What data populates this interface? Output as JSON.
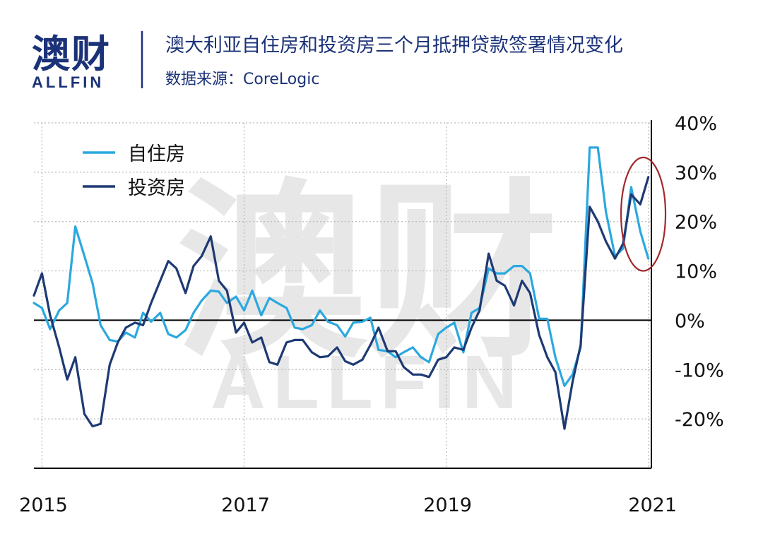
{
  "brand": {
    "logo_cn": "澳财",
    "logo_en": "ALLFIN",
    "color": "#1b3278",
    "accent": "#d21b2a"
  },
  "header": {
    "title": "澳大利亚自住房和投资房三个月抵押贷款签署情况变化",
    "source": "数据来源：CoreLogic"
  },
  "watermark": {
    "cn": "澳财",
    "en": "ALLFIN"
  },
  "chart_data": {
    "type": "line",
    "x_ticks": [
      {
        "label": "2015",
        "year": 2015
      },
      {
        "label": "2017",
        "year": 2017
      },
      {
        "label": "2019",
        "year": 2019
      },
      {
        "label": "2021",
        "year": 2021
      }
    ],
    "y_ticks": [
      {
        "label": "40%",
        "value": 40
      },
      {
        "label": "30%",
        "value": 30
      },
      {
        "label": "20%",
        "value": 20
      },
      {
        "label": "10%",
        "value": 10
      },
      {
        "label": "0%",
        "value": 0
      },
      {
        "label": "-10%",
        "value": -10
      },
      {
        "label": "-20%",
        "value": -20
      }
    ],
    "ylim": [
      -30,
      40
    ],
    "xlim": [
      2014.92,
      2021.03
    ],
    "grid": "dotted",
    "legend": "top-left",
    "highlight_ellipse": {
      "x_center": 2020.95,
      "y_center": 21.5,
      "x_radius": 0.22,
      "y_radius": 11.5,
      "color": "#a3292c"
    },
    "series": [
      {
        "name": "自住房",
        "color": "#2ba8df",
        "points": [
          [
            2014.92,
            3.5
          ],
          [
            2015.0,
            2.5
          ],
          [
            2015.08,
            -1.8
          ],
          [
            2015.17,
            2.0
          ],
          [
            2015.25,
            3.5
          ],
          [
            2015.33,
            19.0
          ],
          [
            2015.42,
            13.0
          ],
          [
            2015.5,
            7.5
          ],
          [
            2015.58,
            -1.0
          ],
          [
            2015.67,
            -4.0
          ],
          [
            2015.75,
            -4.3
          ],
          [
            2015.83,
            -2.5
          ],
          [
            2015.92,
            -3.5
          ],
          [
            2016.0,
            1.5
          ],
          [
            2016.08,
            -0.3
          ],
          [
            2016.17,
            1.5
          ],
          [
            2016.25,
            -2.8
          ],
          [
            2016.33,
            -3.5
          ],
          [
            2016.42,
            -2.0
          ],
          [
            2016.5,
            1.5
          ],
          [
            2016.58,
            4.0
          ],
          [
            2016.67,
            6.0
          ],
          [
            2016.75,
            5.8
          ],
          [
            2016.83,
            3.5
          ],
          [
            2016.92,
            4.8
          ],
          [
            2017.0,
            2.0
          ],
          [
            2017.08,
            6.0
          ],
          [
            2017.17,
            1.0
          ],
          [
            2017.25,
            4.5
          ],
          [
            2017.33,
            3.5
          ],
          [
            2017.42,
            2.5
          ],
          [
            2017.5,
            -1.5
          ],
          [
            2017.58,
            -1.8
          ],
          [
            2017.67,
            -1.0
          ],
          [
            2017.75,
            2.0
          ],
          [
            2017.83,
            -0.3
          ],
          [
            2017.92,
            -1.0
          ],
          [
            2018.0,
            -3.3
          ],
          [
            2018.08,
            -0.5
          ],
          [
            2018.17,
            -0.3
          ],
          [
            2018.25,
            0.5
          ],
          [
            2018.33,
            -6.0
          ],
          [
            2018.42,
            -6.3
          ],
          [
            2018.5,
            -7.5
          ],
          [
            2018.58,
            -6.5
          ],
          [
            2018.67,
            -5.5
          ],
          [
            2018.75,
            -7.5
          ],
          [
            2018.83,
            -8.5
          ],
          [
            2018.92,
            -2.8
          ],
          [
            2019.0,
            -1.5
          ],
          [
            2019.08,
            -0.5
          ],
          [
            2019.17,
            -6.5
          ],
          [
            2019.25,
            1.5
          ],
          [
            2019.33,
            2.5
          ],
          [
            2019.42,
            10.5
          ],
          [
            2019.5,
            9.5
          ],
          [
            2019.58,
            9.5
          ],
          [
            2019.67,
            11.0
          ],
          [
            2019.75,
            11.0
          ],
          [
            2019.83,
            9.5
          ],
          [
            2019.92,
            0.3
          ],
          [
            2020.0,
            0.3
          ],
          [
            2020.08,
            -7.5
          ],
          [
            2020.17,
            -13.3
          ],
          [
            2020.25,
            -11.0
          ],
          [
            2020.33,
            -5.5
          ],
          [
            2020.42,
            35.0
          ],
          [
            2020.5,
            35.0
          ],
          [
            2020.58,
            22.0
          ],
          [
            2020.67,
            13.0
          ],
          [
            2020.75,
            14.5
          ],
          [
            2020.83,
            27.0
          ],
          [
            2020.92,
            18.0
          ],
          [
            2021.0,
            12.5
          ]
        ]
      },
      {
        "name": "投资房",
        "color": "#1e3a73",
        "points": [
          [
            2014.92,
            5.0
          ],
          [
            2015.0,
            9.5
          ],
          [
            2015.08,
            1.0
          ],
          [
            2015.17,
            -5.5
          ],
          [
            2015.25,
            -12.0
          ],
          [
            2015.33,
            -7.5
          ],
          [
            2015.42,
            -19.0
          ],
          [
            2015.5,
            -21.5
          ],
          [
            2015.58,
            -21.0
          ],
          [
            2015.67,
            -9.0
          ],
          [
            2015.75,
            -4.5
          ],
          [
            2015.83,
            -1.5
          ],
          [
            2015.92,
            -0.5
          ],
          [
            2016.0,
            -1.0
          ],
          [
            2016.08,
            3.5
          ],
          [
            2016.17,
            8.0
          ],
          [
            2016.25,
            12.0
          ],
          [
            2016.33,
            10.5
          ],
          [
            2016.42,
            5.5
          ],
          [
            2016.5,
            11.0
          ],
          [
            2016.58,
            13.0
          ],
          [
            2016.67,
            17.0
          ],
          [
            2016.75,
            8.0
          ],
          [
            2016.83,
            6.0
          ],
          [
            2016.92,
            -2.5
          ],
          [
            2017.0,
            -0.5
          ],
          [
            2017.08,
            -4.5
          ],
          [
            2017.17,
            -3.5
          ],
          [
            2017.25,
            -8.5
          ],
          [
            2017.33,
            -9.0
          ],
          [
            2017.42,
            -4.5
          ],
          [
            2017.5,
            -4.0
          ],
          [
            2017.58,
            -4.0
          ],
          [
            2017.67,
            -6.5
          ],
          [
            2017.75,
            -7.5
          ],
          [
            2017.83,
            -7.3
          ],
          [
            2017.92,
            -5.5
          ],
          [
            2018.0,
            -8.3
          ],
          [
            2018.08,
            -9.0
          ],
          [
            2018.17,
            -8.0
          ],
          [
            2018.25,
            -5.0
          ],
          [
            2018.33,
            -1.5
          ],
          [
            2018.42,
            -6.3
          ],
          [
            2018.5,
            -6.3
          ],
          [
            2018.58,
            -9.5
          ],
          [
            2018.67,
            -11.0
          ],
          [
            2018.75,
            -11.0
          ],
          [
            2018.83,
            -11.5
          ],
          [
            2018.92,
            -8.0
          ],
          [
            2019.0,
            -7.5
          ],
          [
            2019.08,
            -5.5
          ],
          [
            2019.17,
            -6.0
          ],
          [
            2019.25,
            -1.5
          ],
          [
            2019.33,
            2.0
          ],
          [
            2019.42,
            13.5
          ],
          [
            2019.5,
            8.0
          ],
          [
            2019.58,
            7.0
          ],
          [
            2019.67,
            3.0
          ],
          [
            2019.75,
            8.0
          ],
          [
            2019.83,
            5.5
          ],
          [
            2019.92,
            -3.0
          ],
          [
            2020.0,
            -7.5
          ],
          [
            2020.08,
            -10.5
          ],
          [
            2020.17,
            -22.0
          ],
          [
            2020.25,
            -12.5
          ],
          [
            2020.33,
            -5.0
          ],
          [
            2020.42,
            23.0
          ],
          [
            2020.5,
            20.0
          ],
          [
            2020.58,
            16.0
          ],
          [
            2020.67,
            12.5
          ],
          [
            2020.75,
            15.5
          ],
          [
            2020.83,
            25.5
          ],
          [
            2020.92,
            23.5
          ],
          [
            2021.0,
            29.0
          ]
        ]
      }
    ]
  }
}
